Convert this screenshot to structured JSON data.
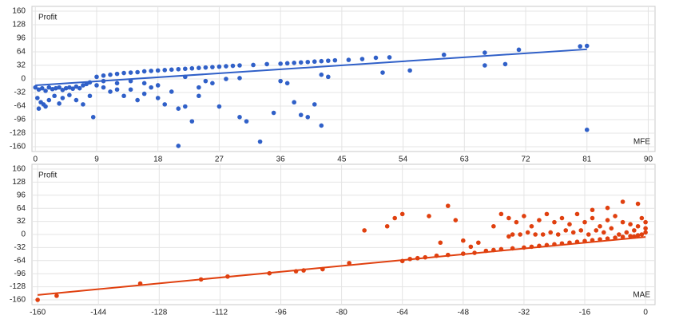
{
  "chart_data": [
    {
      "type": "scatter",
      "y_label": "Profit",
      "x_label": "MFE",
      "color": "#3060c8",
      "grid": true,
      "xlim": [
        -0.5,
        91
      ],
      "xticks": [
        0,
        9,
        18,
        27,
        36,
        45,
        54,
        63,
        72,
        81,
        90
      ],
      "ylim": [
        -160,
        160
      ],
      "yticks": [
        -160,
        -128,
        -96,
        -64,
        -32,
        0,
        32,
        64,
        96,
        128,
        160
      ],
      "x": [
        0,
        0.5,
        1,
        1.5,
        2,
        2.5,
        3,
        3.5,
        4,
        4.5,
        5,
        5.5,
        6,
        6.5,
        7,
        7.5,
        8,
        0.3,
        0.8,
        1.2,
        2,
        2.8,
        3.5,
        4,
        5,
        6,
        7,
        8,
        8.5,
        0.5,
        1.5,
        9,
        10,
        11,
        12,
        13,
        14,
        15,
        16,
        17,
        18,
        19,
        20,
        21,
        22,
        23,
        24,
        25,
        26,
        27,
        28,
        29,
        30,
        32,
        34,
        36,
        37,
        38,
        39,
        40,
        41,
        42,
        43,
        44,
        46,
        48,
        50,
        52,
        60,
        66,
        71,
        80,
        81,
        9,
        10,
        11,
        12,
        13,
        14,
        15,
        16,
        17,
        18,
        19,
        20,
        21,
        22,
        23,
        21,
        24,
        27,
        30,
        31,
        33,
        35,
        38,
        39,
        40,
        41,
        42,
        36,
        37,
        42,
        43,
        51,
        55,
        66,
        69,
        81,
        22,
        25,
        28,
        30,
        26,
        24,
        10,
        12,
        14,
        16,
        18
      ],
      "y": [
        -20,
        -25,
        -22,
        -28,
        -20,
        -24,
        -22,
        -20,
        -26,
        -22,
        -20,
        -23,
        -18,
        -22,
        -15,
        -12,
        -8,
        -45,
        -55,
        -60,
        -50,
        -40,
        -58,
        -45,
        -38,
        -50,
        -60,
        -40,
        -90,
        -70,
        -65,
        5,
        8,
        10,
        12,
        14,
        15,
        16,
        18,
        19,
        20,
        21,
        22,
        23,
        24,
        25,
        26,
        27,
        28,
        29,
        30,
        31,
        32,
        33,
        35,
        36,
        37,
        38,
        39,
        40,
        41,
        42,
        43,
        44,
        45,
        47,
        50,
        51,
        57,
        62,
        69,
        77,
        78,
        -15,
        -20,
        -30,
        -10,
        -40,
        -25,
        -50,
        -35,
        -20,
        -45,
        -60,
        -30,
        -70,
        -65,
        -100,
        -158,
        -40,
        -65,
        -90,
        -100,
        -148,
        -80,
        -55,
        -85,
        -90,
        -60,
        -110,
        -5,
        -10,
        10,
        5,
        15,
        20,
        32,
        35,
        -120,
        5,
        -5,
        0,
        2,
        -10,
        -20,
        -5,
        -25,
        -5,
        -10,
        -15
      ],
      "trendline": {
        "x": [
          0,
          81
        ],
        "y": [
          -15,
          70
        ]
      }
    },
    {
      "type": "scatter",
      "y_label": "Profit",
      "x_label": "MAE",
      "color": "#e0400f",
      "grid": true,
      "xlim": [
        -161.5,
        2.5
      ],
      "xticks": [
        -160,
        -144,
        -128,
        -112,
        -96,
        -80,
        -64,
        -48,
        -32,
        -16,
        0
      ],
      "ylim": [
        -160,
        160
      ],
      "yticks": [
        -160,
        -128,
        -96,
        -64,
        -32,
        0,
        32,
        64,
        96,
        128,
        160
      ],
      "x": [
        -160,
        -155,
        -133,
        -117,
        -110,
        -99,
        -92,
        -90,
        -85,
        -78,
        -74,
        -68,
        -64,
        -66,
        -57,
        -52,
        -50,
        -54,
        -48,
        -64,
        -62,
        -60,
        -58,
        -55,
        -52,
        -48,
        -45,
        -42,
        -40,
        -38,
        -35,
        -32,
        -30,
        -28,
        -26,
        -24,
        -22,
        -20,
        -18,
        -16,
        -14,
        -12,
        -10,
        -8,
        -6,
        -4,
        -2,
        -36,
        -38,
        -34,
        -32,
        -30,
        -28,
        -26,
        -24,
        -22,
        -20,
        -18,
        -16,
        -14,
        -12,
        -10,
        -8,
        -6,
        -4,
        -2,
        0,
        -1,
        0,
        -3,
        -5,
        -7,
        -9,
        -11,
        -13,
        -15,
        -17,
        -19,
        -21,
        -23,
        -25,
        -27,
        -29,
        -31,
        -33,
        -35,
        -6,
        -2,
        -10,
        -14,
        -3,
        -1,
        0,
        -36,
        -40,
        -44,
        -46
      ],
      "y": [
        -160,
        -150,
        -120,
        -110,
        -103,
        -95,
        -90,
        -88,
        -85,
        -70,
        10,
        20,
        50,
        40,
        45,
        70,
        35,
        -20,
        -15,
        -65,
        -60,
        -58,
        -56,
        -52,
        -50,
        -47,
        -45,
        -40,
        -38,
        -36,
        -34,
        -32,
        -30,
        -28,
        -26,
        -24,
        -22,
        -20,
        -18,
        -16,
        -14,
        -12,
        -10,
        -8,
        -6,
        -4,
        -2,
        40,
        50,
        30,
        45,
        20,
        35,
        50,
        30,
        40,
        25,
        50,
        30,
        40,
        20,
        35,
        45,
        30,
        25,
        20,
        15,
        40,
        30,
        10,
        5,
        0,
        15,
        5,
        10,
        0,
        10,
        5,
        10,
        0,
        5,
        0,
        0,
        5,
        0,
        0,
        80,
        75,
        65,
        60,
        -5,
        0,
        5,
        -5,
        20,
        -20,
        -30
      ],
      "trendline": {
        "x": [
          -160,
          0
        ],
        "y": [
          -148,
          -6
        ]
      }
    }
  ]
}
